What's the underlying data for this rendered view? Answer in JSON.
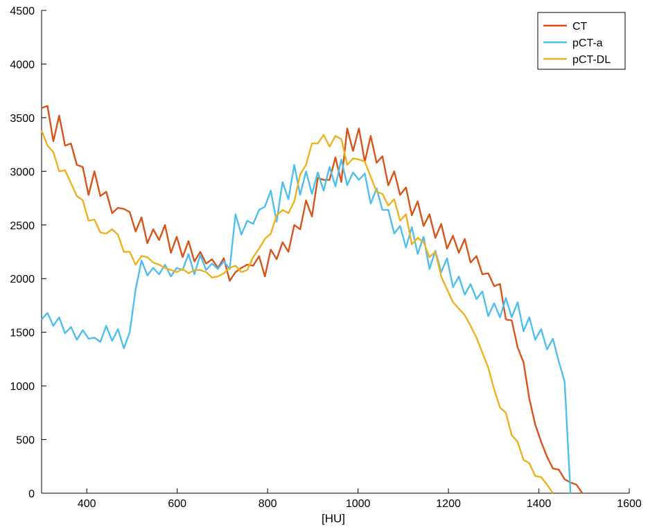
{
  "chart_data": {
    "type": "line",
    "title": "",
    "xlabel": "[HU]",
    "ylabel": "",
    "xlim": [
      300,
      1600
    ],
    "ylim": [
      0,
      4500
    ],
    "xticks": [
      400,
      600,
      800,
      1000,
      1200,
      1400,
      1600
    ],
    "yticks": [
      0,
      500,
      1000,
      1500,
      2000,
      2500,
      3000,
      3500,
      4000,
      4500
    ],
    "legend_position": "top-right",
    "grid": false,
    "x": [
      300,
      313,
      326,
      339,
      352,
      365,
      378,
      391,
      404,
      417,
      430,
      443,
      456,
      469,
      482,
      495,
      508,
      521,
      534,
      547,
      560,
      573,
      586,
      599,
      612,
      625,
      638,
      651,
      664,
      677,
      690,
      703,
      716,
      729,
      742,
      755,
      768,
      781,
      794,
      807,
      820,
      833,
      846,
      859,
      872,
      885,
      898,
      911,
      924,
      937,
      950,
      963,
      976,
      989,
      1002,
      1015,
      1028,
      1041,
      1054,
      1067,
      1080,
      1093,
      1106,
      1119,
      1132,
      1145,
      1158,
      1171,
      1184,
      1197,
      1210,
      1223,
      1236,
      1249,
      1262,
      1275,
      1288,
      1301,
      1314,
      1327,
      1340,
      1353,
      1366,
      1379,
      1392,
      1405,
      1418,
      1431,
      1444,
      1457,
      1470,
      1483,
      1496,
      1509,
      1522,
      1535,
      1548,
      1561,
      1574,
      1587,
      1600
    ],
    "series": [
      {
        "name": "CT",
        "color": "#d95319",
        "values": [
          3590,
          3610,
          3280,
          3520,
          3240,
          3260,
          3060,
          3040,
          2780,
          3000,
          2770,
          2810,
          2610,
          2660,
          2650,
          2620,
          2440,
          2570,
          2330,
          2460,
          2360,
          2500,
          2240,
          2390,
          2200,
          2350,
          2160,
          2250,
          2140,
          2180,
          2100,
          2190,
          1980,
          2060,
          2100,
          2130,
          2120,
          2210,
          2020,
          2270,
          2180,
          2340,
          2250,
          2500,
          2460,
          2730,
          2580,
          2940,
          2920,
          2920,
          3130,
          2900,
          3400,
          3190,
          3400,
          3090,
          3330,
          3080,
          3140,
          2870,
          3000,
          2780,
          2850,
          2590,
          2720,
          2490,
          2600,
          2380,
          2510,
          2280,
          2400,
          2240,
          2370,
          2150,
          2210,
          2040,
          2050,
          1930,
          1950,
          1620,
          1610,
          1360,
          1220,
          880,
          640,
          480,
          340,
          230,
          220,
          130,
          100,
          80,
          0,
          0,
          0,
          0,
          0,
          0,
          0,
          0,
          0
        ]
      },
      {
        "name": "pCT-a",
        "color": "#4dbeee",
        "values": [
          1620,
          1680,
          1560,
          1640,
          1490,
          1550,
          1430,
          1520,
          1440,
          1450,
          1410,
          1560,
          1420,
          1530,
          1350,
          1500,
          1900,
          2170,
          2030,
          2100,
          2040,
          2130,
          2020,
          2100,
          2080,
          2230,
          2040,
          2220,
          2080,
          2140,
          2090,
          2160,
          2090,
          2600,
          2410,
          2540,
          2510,
          2640,
          2670,
          2820,
          2530,
          2900,
          2740,
          3060,
          2780,
          3000,
          2790,
          2990,
          2820,
          3040,
          2860,
          3110,
          2870,
          2990,
          2920,
          2980,
          2700,
          2840,
          2640,
          2640,
          2420,
          2490,
          2290,
          2480,
          2230,
          2390,
          2090,
          2260,
          2060,
          2190,
          1920,
          2020,
          1850,
          1950,
          1810,
          1880,
          1650,
          1770,
          1640,
          1820,
          1640,
          1780,
          1510,
          1640,
          1430,
          1530,
          1340,
          1440,
          1230,
          1040,
          0,
          0,
          0,
          0,
          0,
          0,
          0,
          0,
          0,
          0,
          0
        ]
      },
      {
        "name": "pCT-DL",
        "color": "#edb120",
        "values": [
          3380,
          3240,
          3180,
          3000,
          3010,
          2890,
          2770,
          2730,
          2540,
          2550,
          2430,
          2420,
          2460,
          2410,
          2250,
          2250,
          2130,
          2210,
          2200,
          2150,
          2130,
          2100,
          2080,
          2060,
          2090,
          2050,
          2080,
          2080,
          2060,
          2010,
          2020,
          2050,
          2100,
          2120,
          2060,
          2080,
          2200,
          2280,
          2370,
          2420,
          2590,
          2640,
          2610,
          2720,
          2970,
          3060,
          3260,
          3260,
          3340,
          3230,
          3330,
          3300,
          3060,
          3120,
          3110,
          3090,
          2950,
          2810,
          2790,
          2680,
          2740,
          2540,
          2600,
          2320,
          2380,
          2340,
          2200,
          2250,
          2020,
          1900,
          1780,
          1720,
          1660,
          1560,
          1450,
          1310,
          1170,
          970,
          800,
          750,
          540,
          480,
          310,
          280,
          160,
          150,
          80,
          0,
          0,
          0,
          0,
          0,
          0,
          0,
          0,
          0,
          0,
          0,
          0,
          0,
          0
        ]
      }
    ]
  }
}
